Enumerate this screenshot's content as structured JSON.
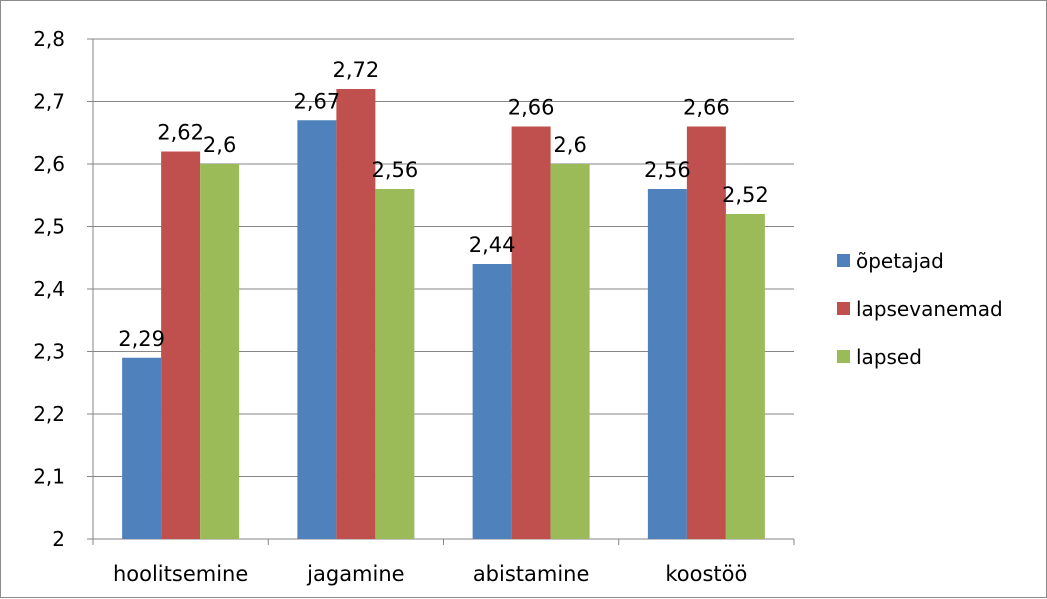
{
  "chart_data": {
    "type": "bar",
    "title": "",
    "xlabel": "",
    "ylabel": "",
    "categories": [
      "hoolitsemine",
      "jagamine",
      "abistamine",
      "koostöö"
    ],
    "series": [
      {
        "name": "õpetajad",
        "color": "#4F81BD",
        "values": [
          2.29,
          2.67,
          2.44,
          2.56
        ],
        "labels": [
          "2,29",
          "2,67",
          "2,44",
          "2,56"
        ]
      },
      {
        "name": "lapsevanemad",
        "color": "#C0504D",
        "values": [
          2.62,
          2.72,
          2.66,
          2.66
        ],
        "labels": [
          "2,62",
          "2,72",
          "2,66",
          "2,66"
        ]
      },
      {
        "name": "lapsed",
        "color": "#9BBB59",
        "values": [
          2.6,
          2.56,
          2.6,
          2.52
        ],
        "labels": [
          "2,6",
          "2,56",
          "2,6",
          "2,52"
        ]
      }
    ],
    "ylim": [
      2,
      2.8
    ],
    "yticks": [
      2,
      2.1,
      2.2,
      2.3,
      2.4,
      2.5,
      2.6,
      2.7,
      2.8
    ],
    "ytick_labels": [
      "2",
      "2,1",
      "2,2",
      "2,3",
      "2,4",
      "2,5",
      "2,6",
      "2,7",
      "2,8"
    ],
    "grid": true,
    "legend_position": "right"
  }
}
